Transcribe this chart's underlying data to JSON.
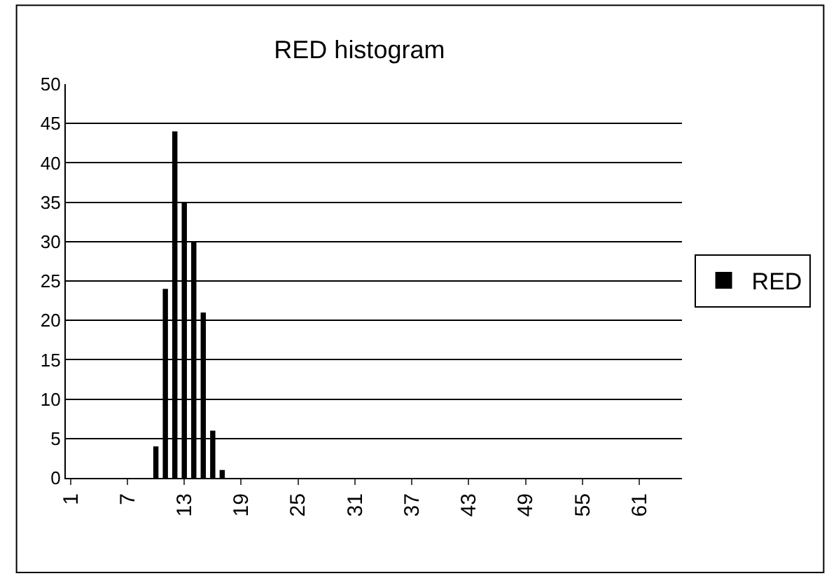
{
  "chart_data": {
    "type": "bar",
    "title": "RED histogram",
    "categories": [
      "1",
      null,
      null,
      null,
      null,
      null,
      "7",
      null,
      null,
      null,
      null,
      null,
      "13",
      null,
      null,
      null,
      null,
      null,
      "19",
      null,
      null,
      null,
      null,
      null,
      "25",
      null,
      null,
      null,
      null,
      null,
      "31",
      null,
      null,
      null,
      null,
      null,
      "37",
      null,
      null,
      null,
      null,
      null,
      "43",
      null,
      null,
      null,
      null,
      null,
      "49",
      null,
      null,
      null,
      null,
      null,
      "55",
      null,
      null,
      null,
      null,
      null,
      "61",
      null,
      null,
      null,
      null
    ],
    "series": [
      {
        "name": "RED",
        "color": "#000000",
        "values": [
          0,
          0,
          0,
          0,
          0,
          0,
          0,
          0,
          0,
          4,
          24,
          44,
          35,
          30,
          21,
          6,
          1,
          0,
          0,
          0,
          0,
          0,
          0,
          0,
          0,
          0,
          0,
          0,
          0,
          0,
          0,
          0,
          0,
          0,
          0,
          0,
          0,
          0,
          0,
          0,
          0,
          0,
          0,
          0,
          0,
          0,
          0,
          0,
          0,
          0,
          0,
          0,
          0,
          0,
          0,
          0,
          0,
          0,
          0,
          0,
          0,
          0,
          0,
          0,
          0
        ]
      }
    ],
    "ylim": [
      0,
      50
    ],
    "yticks": [
      0,
      5,
      10,
      15,
      20,
      25,
      30,
      35,
      40,
      45,
      50
    ],
    "grid": "y",
    "legend": "right"
  }
}
